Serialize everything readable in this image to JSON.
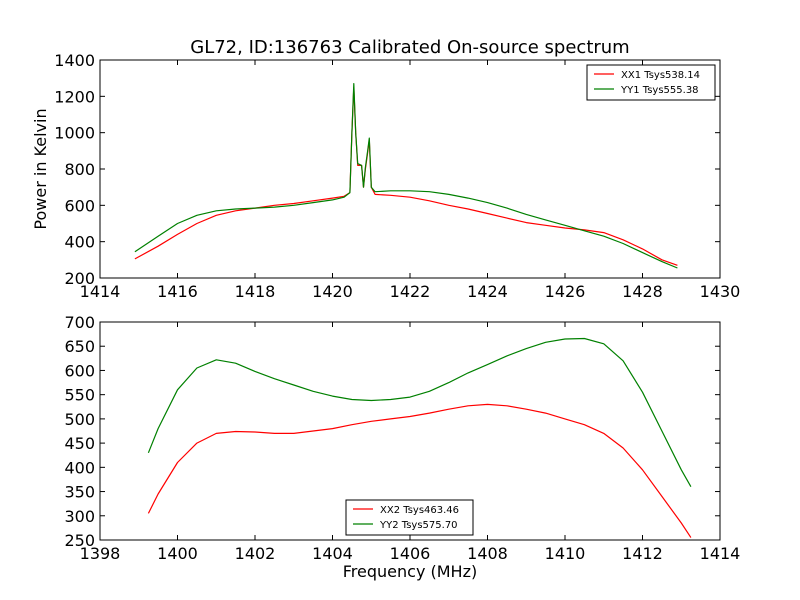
{
  "figure": {
    "title": "GL72, ID:136763 Calibrated On-source spectrum",
    "xlabel": "Frequency (MHz)",
    "ylabel_top": "Power in Kelvin"
  },
  "chart_data": [
    {
      "type": "line",
      "xlim": [
        1414,
        1430
      ],
      "ylim": [
        200,
        1400
      ],
      "xticks": [
        1414,
        1416,
        1418,
        1420,
        1422,
        1424,
        1426,
        1428,
        1430
      ],
      "yticks": [
        200,
        400,
        600,
        800,
        1000,
        1200,
        1400
      ],
      "legend_placement": "top-right",
      "series": [
        {
          "name": "XX1 Tsys538.14",
          "color": "#ff0000",
          "x": [
            1414.9,
            1415.5,
            1416.0,
            1416.5,
            1417.0,
            1417.5,
            1418.0,
            1418.5,
            1419.0,
            1419.5,
            1420.0,
            1420.3,
            1420.45,
            1420.5,
            1420.55,
            1420.6,
            1420.65,
            1420.75,
            1420.8,
            1420.85,
            1420.9,
            1420.95,
            1421.0,
            1421.1,
            1421.5,
            1422.0,
            1422.5,
            1423.0,
            1423.5,
            1424.0,
            1424.5,
            1425.0,
            1425.5,
            1426.0,
            1426.5,
            1427.0,
            1427.5,
            1428.0,
            1428.5,
            1428.9
          ],
          "y": [
            305,
            375,
            440,
            500,
            545,
            570,
            585,
            600,
            610,
            625,
            640,
            650,
            670,
            1000,
            1250,
            1000,
            820,
            820,
            700,
            800,
            880,
            960,
            700,
            660,
            655,
            645,
            625,
            600,
            580,
            555,
            530,
            505,
            490,
            475,
            465,
            450,
            410,
            360,
            300,
            270
          ]
        },
        {
          "name": "YY1 Tsys555.38",
          "color": "#008000",
          "x": [
            1414.9,
            1415.5,
            1416.0,
            1416.5,
            1417.0,
            1417.5,
            1418.0,
            1418.5,
            1419.0,
            1419.5,
            1420.0,
            1420.3,
            1420.45,
            1420.5,
            1420.55,
            1420.6,
            1420.65,
            1420.75,
            1420.8,
            1420.85,
            1420.9,
            1420.95,
            1421.0,
            1421.1,
            1421.5,
            1422.0,
            1422.5,
            1423.0,
            1423.5,
            1424.0,
            1424.5,
            1425.0,
            1425.5,
            1426.0,
            1426.5,
            1427.0,
            1427.5,
            1428.0,
            1428.5,
            1428.9
          ],
          "y": [
            345,
            430,
            500,
            545,
            570,
            580,
            585,
            590,
            600,
            615,
            630,
            645,
            670,
            1000,
            1270,
            1000,
            830,
            820,
            700,
            810,
            890,
            970,
            700,
            675,
            680,
            680,
            675,
            660,
            640,
            615,
            585,
            550,
            520,
            490,
            460,
            430,
            390,
            340,
            290,
            255
          ]
        }
      ]
    },
    {
      "type": "line",
      "xlim": [
        1398,
        1414
      ],
      "ylim": [
        250,
        700
      ],
      "xticks": [
        1398,
        1400,
        1402,
        1404,
        1406,
        1408,
        1410,
        1412,
        1414
      ],
      "yticks": [
        250,
        300,
        350,
        400,
        450,
        500,
        550,
        600,
        650,
        700
      ],
      "legend_placement": "bottom-center",
      "series": [
        {
          "name": "XX2 Tsys463.46",
          "color": "#ff0000",
          "x": [
            1399.25,
            1399.5,
            1400.0,
            1400.5,
            1401.0,
            1401.5,
            1402.0,
            1402.5,
            1403.0,
            1403.5,
            1404.0,
            1404.5,
            1405.0,
            1405.5,
            1406.0,
            1406.5,
            1407.0,
            1407.5,
            1408.0,
            1408.5,
            1409.0,
            1409.5,
            1410.0,
            1410.5,
            1411.0,
            1411.5,
            1412.0,
            1412.5,
            1413.0,
            1413.25
          ],
          "y": [
            305,
            345,
            410,
            450,
            470,
            474,
            473,
            470,
            470,
            475,
            480,
            488,
            495,
            500,
            505,
            512,
            520,
            527,
            530,
            527,
            520,
            512,
            500,
            488,
            470,
            440,
            395,
            340,
            285,
            255
          ]
        },
        {
          "name": "YY2 Tsys575.70",
          "color": "#008000",
          "x": [
            1399.25,
            1399.5,
            1400.0,
            1400.5,
            1401.0,
            1401.5,
            1402.0,
            1402.5,
            1403.0,
            1403.5,
            1404.0,
            1404.5,
            1405.0,
            1405.5,
            1406.0,
            1406.5,
            1407.0,
            1407.5,
            1408.0,
            1408.5,
            1409.0,
            1409.5,
            1410.0,
            1410.5,
            1411.0,
            1411.5,
            1412.0,
            1412.5,
            1413.0,
            1413.25
          ],
          "y": [
            430,
            480,
            560,
            605,
            622,
            615,
            598,
            583,
            570,
            557,
            547,
            540,
            538,
            540,
            545,
            557,
            575,
            595,
            612,
            630,
            645,
            658,
            665,
            666,
            655,
            620,
            555,
            475,
            395,
            360
          ]
        }
      ]
    }
  ]
}
